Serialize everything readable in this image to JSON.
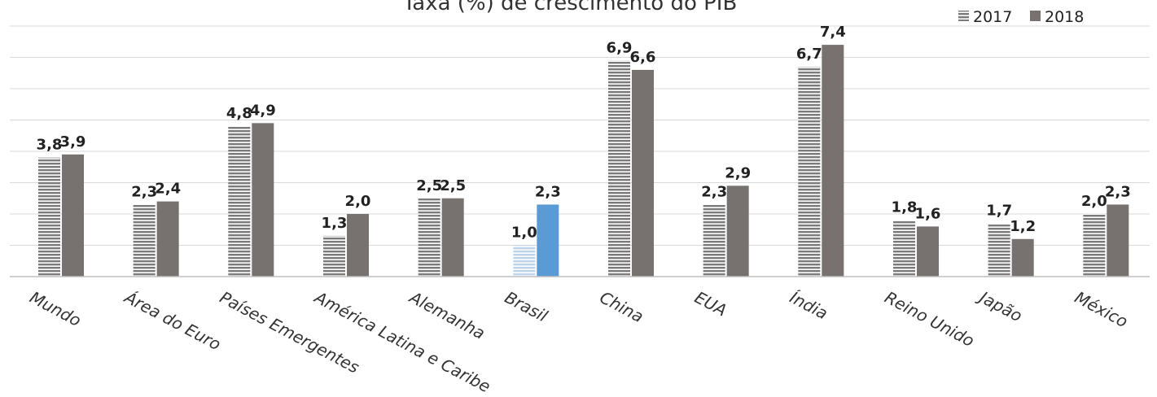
{
  "chart_data": {
    "type": "bar",
    "title": "Taxa (%) de crescimento do PIB",
    "xlabel": "",
    "ylabel": "",
    "categories": [
      "Mundo",
      "Área do Euro",
      "Países Emergentes",
      "América Latina e Caribe",
      "Alemanha",
      "Brasil",
      "China",
      "EUA",
      "Índia",
      "Reino Unido",
      "Japão",
      "México"
    ],
    "series": [
      {
        "name": "2017",
        "values": [
          3.8,
          2.3,
          4.8,
          1.3,
          2.5,
          1.0,
          6.9,
          2.3,
          6.7,
          1.8,
          1.7,
          2.0
        ],
        "labels": [
          "3,8",
          "2,3",
          "4,8",
          "1,3",
          "2,5",
          "1,0",
          "6,9",
          "2,3",
          "6,7",
          "1,8",
          "1,7",
          "2,0"
        ]
      },
      {
        "name": "2018",
        "values": [
          3.9,
          2.4,
          4.9,
          2.0,
          2.5,
          2.3,
          6.6,
          2.9,
          7.4,
          1.6,
          1.2,
          2.3
        ],
        "labels": [
          "3,9",
          "2,4",
          "4,9",
          "2,0",
          "2,5",
          "2,3",
          "6,6",
          "2,9",
          "7,4",
          "1,6",
          "1,2",
          "2,3"
        ]
      }
    ],
    "highlight_category": "Brasil",
    "ylim": [
      0,
      8
    ],
    "grid": true,
    "legend_position": "top-right",
    "colors": {
      "series_2017": "#7a7a7a",
      "series_2018": "#777170",
      "highlight_2017": "#bcd3ee",
      "highlight_2018": "#5b9bd5",
      "axis": "#bfbfbf",
      "grid": "#d9d9d9"
    }
  }
}
